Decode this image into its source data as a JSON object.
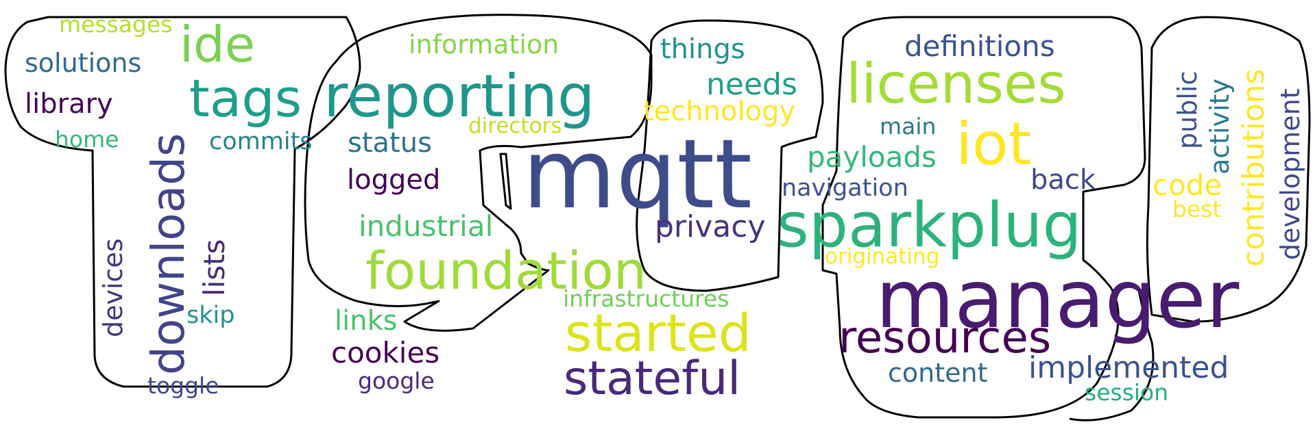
{
  "words": [
    {
      "text": "messages",
      "color": "#b5de2b"
    },
    {
      "text": "ide",
      "color": "#7ad151"
    },
    {
      "text": "information",
      "color": "#86d549"
    },
    {
      "text": "things",
      "color": "#21918c"
    },
    {
      "text": "definitions",
      "color": "#3b528b"
    },
    {
      "text": "solutions",
      "color": "#31688e"
    },
    {
      "text": "tags",
      "color": "#1f9e89"
    },
    {
      "text": "reporting",
      "color": "#1f968b"
    },
    {
      "text": "needs",
      "color": "#1f9e89"
    },
    {
      "text": "licenses",
      "color": "#a5db36"
    },
    {
      "text": "library",
      "color": "#440154"
    },
    {
      "text": "technology",
      "color": "#fde725"
    },
    {
      "text": "directors",
      "color": "#c2df23"
    },
    {
      "text": "main",
      "color": "#2a788e"
    },
    {
      "text": "public",
      "color": "#3b528b"
    },
    {
      "text": "activity",
      "color": "#2a788e"
    },
    {
      "text": "contributions",
      "color": "#fde725"
    },
    {
      "text": "development",
      "color": "#3e4989"
    },
    {
      "text": "home",
      "color": "#35b779"
    },
    {
      "text": "commits",
      "color": "#26828e"
    },
    {
      "text": "status",
      "color": "#2c728e"
    },
    {
      "text": "mqtt",
      "color": "#3e4c8a"
    },
    {
      "text": "iot",
      "color": "#fde725"
    },
    {
      "text": "payloads",
      "color": "#35b779"
    },
    {
      "text": "downloads",
      "color": "#414487"
    },
    {
      "text": "logged",
      "color": "#440154"
    },
    {
      "text": "navigation",
      "color": "#3b528b"
    },
    {
      "text": "back",
      "color": "#3e4989"
    },
    {
      "text": "code",
      "color": "#fde725"
    },
    {
      "text": "best",
      "color": "#fde725"
    },
    {
      "text": "lists",
      "color": "#482878"
    },
    {
      "text": "industrial",
      "color": "#4ac16d"
    },
    {
      "text": "privacy",
      "color": "#46327e"
    },
    {
      "text": "sparkplug",
      "color": "#2db27d"
    },
    {
      "text": "devices",
      "color": "#46327e"
    },
    {
      "text": "foundation",
      "color": "#a0da39"
    },
    {
      "text": "originating",
      "color": "#fde725"
    },
    {
      "text": "manager",
      "color": "#481c6e"
    },
    {
      "text": "skip",
      "color": "#21918c"
    },
    {
      "text": "infrastructures",
      "color": "#6ece58"
    },
    {
      "text": "links",
      "color": "#4ac16d"
    },
    {
      "text": "started",
      "color": "#dde318"
    },
    {
      "text": "resources",
      "color": "#440154"
    },
    {
      "text": "cookies",
      "color": "#440154"
    },
    {
      "text": "stateful",
      "color": "#472a7a"
    },
    {
      "text": "implemented",
      "color": "#3b528b"
    },
    {
      "text": "content",
      "color": "#31688e"
    },
    {
      "text": "google",
      "color": "#482878"
    },
    {
      "text": "toggle",
      "color": "#3e4989"
    },
    {
      "text": "session",
      "color": "#25ab82"
    }
  ]
}
